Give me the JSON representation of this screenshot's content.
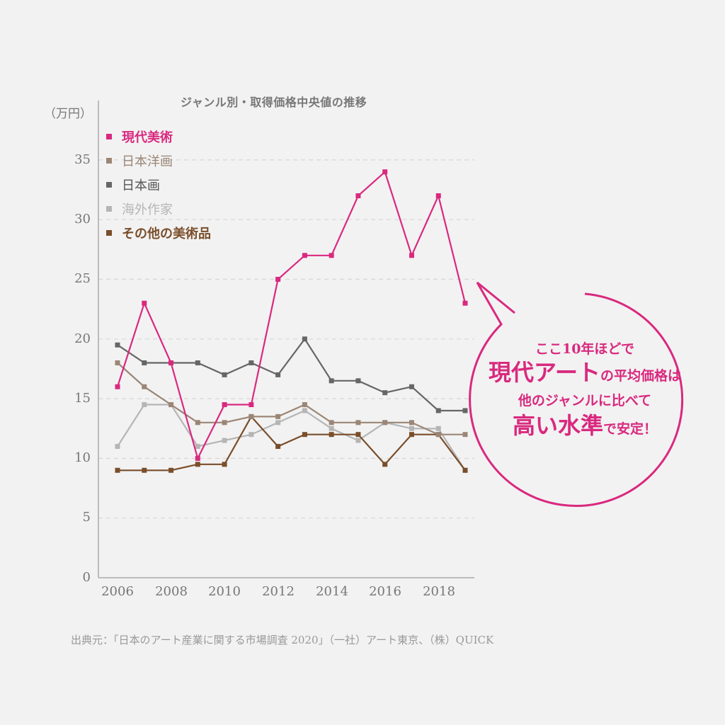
{
  "chart_data": {
    "type": "line",
    "title": "ジャンル別・取得価格中央値の推移",
    "xlabel": "",
    "ylabel": "（万円）",
    "ylim": [
      0,
      35
    ],
    "yticks": [
      0,
      5,
      10,
      15,
      20,
      25,
      30,
      35
    ],
    "x": [
      2006,
      2007,
      2008,
      2009,
      2010,
      2011,
      2012,
      2013,
      2014,
      2015,
      2016,
      2017,
      2018,
      2019
    ],
    "xtick_labels": [
      "2006",
      "2008",
      "2010",
      "2012",
      "2014",
      "2016",
      "2018"
    ],
    "grid": "horizontal dashed",
    "legend_position": "top-left",
    "series": [
      {
        "name": "現代美術",
        "color": "#d9297f",
        "values": [
          16,
          23,
          18,
          10,
          14.5,
          14.5,
          25,
          27,
          27,
          32,
          34,
          27,
          32,
          23
        ]
      },
      {
        "name": "日本洋画",
        "color": "#9b8676",
        "values": [
          18,
          16,
          14.5,
          13,
          13,
          13.5,
          13.5,
          14.5,
          13,
          13,
          13,
          13,
          12,
          12
        ]
      },
      {
        "name": "日本画",
        "color": "#666666",
        "values": [
          19.5,
          18,
          18,
          18,
          17,
          18,
          17,
          20,
          16.5,
          16.5,
          15.5,
          16,
          14,
          14
        ]
      },
      {
        "name": "海外作家",
        "color": "#b5b5b5",
        "values": [
          11,
          14.5,
          14.5,
          11,
          11.5,
          12,
          13,
          14,
          12.5,
          11.5,
          13,
          12.5,
          12.5,
          9
        ]
      },
      {
        "name": "その他の美術品",
        "color": "#7a4e2a",
        "values": [
          9,
          9,
          9,
          9.5,
          9.5,
          13.5,
          11,
          12,
          12,
          12,
          9.5,
          12,
          12,
          9
        ]
      }
    ],
    "annotation": "ここ10年ほどで現代アートの平均価格は他のジャンルに比べて高い水準で安定！"
  },
  "chart": {
    "title": "ジャンル別・取得価格中央値の推移",
    "unit": "（万円）",
    "yticks": [
      "0",
      "5",
      "10",
      "15",
      "20",
      "25",
      "30",
      "35"
    ],
    "xticks": [
      "2006",
      "2008",
      "2010",
      "2012",
      "2014",
      "2016",
      "2018"
    ]
  },
  "legend": [
    {
      "label": "現代美術",
      "color": "#d9297f"
    },
    {
      "label": "日本洋画",
      "color": "#9b8676"
    },
    {
      "label": "日本画",
      "color": "#666666"
    },
    {
      "label": "海外作家",
      "color": "#b5b5b5"
    },
    {
      "label": "その他の美術品",
      "color": "#7a4e2a"
    }
  ],
  "bubble": {
    "line1": "ここ10年ほどで",
    "line2_big": "現代アート",
    "line2_small": "の平均価格は",
    "line3": "他のジャンルに比べて",
    "line4_big": "高い水準",
    "line4_small": "で安定！",
    "color": "#d9297f"
  },
  "source": "出典元：「日本のアート産業に関する市場調査 2020」（一社）アート東京、（株）QUICK"
}
